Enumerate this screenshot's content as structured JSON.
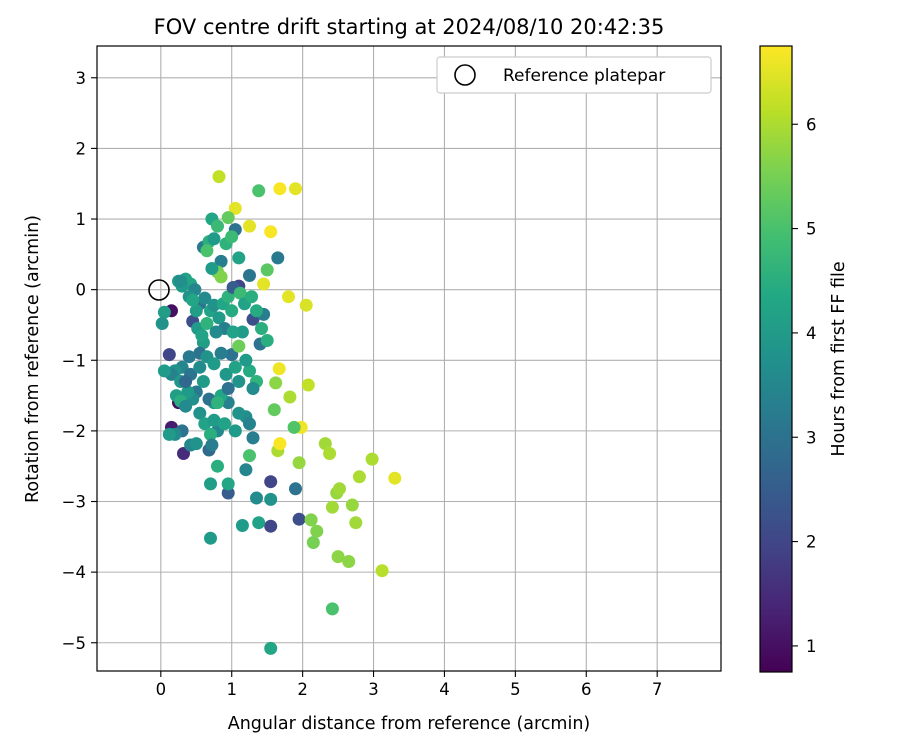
{
  "chart_data": {
    "type": "scatter",
    "title": "FOV centre drift starting at 2024/08/10 20:42:35",
    "xlabel": "Angular distance from reference (arcmin)",
    "ylabel": "Rotation from reference (arcmin)",
    "xlim": [
      -0.9,
      7.9
    ],
    "ylim": [
      -5.4,
      3.45
    ],
    "xticks": [
      0,
      1,
      2,
      3,
      4,
      5,
      6,
      7
    ],
    "yticks": [
      -5,
      -4,
      -3,
      -2,
      -1,
      0,
      1,
      2,
      3
    ],
    "grid": true,
    "legend": {
      "position": "top-right",
      "entries": [
        "Reference platepar"
      ]
    },
    "reference_point": {
      "x": 0,
      "y": 0
    },
    "colormap": "viridis",
    "colorbar": {
      "label": "Hours from first FF file",
      "min": 0.75,
      "max": 6.75,
      "ticks": [
        1,
        2,
        3,
        4,
        5,
        6
      ]
    },
    "points": [
      {
        "x": 0.15,
        "y": -0.3,
        "h": 1.0
      },
      {
        "x": 0.15,
        "y": -1.95,
        "h": 1.2
      },
      {
        "x": 0.25,
        "y": -1.6,
        "h": 1.0
      },
      {
        "x": 0.32,
        "y": -2.32,
        "h": 1.5
      },
      {
        "x": 0.12,
        "y": -0.92,
        "h": 2.0
      },
      {
        "x": 0.3,
        "y": -2.0,
        "h": 3.0
      },
      {
        "x": 0.2,
        "y": -1.15,
        "h": 2.5
      },
      {
        "x": 0.45,
        "y": -0.45,
        "h": 2.2
      },
      {
        "x": 0.55,
        "y": -0.2,
        "h": 3.0
      },
      {
        "x": 0.6,
        "y": 0.6,
        "h": 3.2
      },
      {
        "x": 0.68,
        "y": -2.27,
        "h": 2.8
      },
      {
        "x": 0.8,
        "y": -2.0,
        "h": 3.5
      },
      {
        "x": 0.95,
        "y": -2.88,
        "h": 2.5
      },
      {
        "x": 1.0,
        "y": -0.92,
        "h": 3.0
      },
      {
        "x": 1.05,
        "y": 0.85,
        "h": 3.0
      },
      {
        "x": 1.1,
        "y": 0.05,
        "h": 2.0
      },
      {
        "x": 1.25,
        "y": 0.2,
        "h": 3.1
      },
      {
        "x": 1.3,
        "y": -0.42,
        "h": 2.2
      },
      {
        "x": 1.4,
        "y": -0.77,
        "h": 3.0
      },
      {
        "x": 1.45,
        "y": -0.35,
        "h": 3.3
      },
      {
        "x": 1.65,
        "y": 0.45,
        "h": 3.2
      },
      {
        "x": 1.55,
        "y": -2.72,
        "h": 2.0
      },
      {
        "x": 1.55,
        "y": -3.35,
        "h": 2.0
      },
      {
        "x": 1.95,
        "y": -3.25,
        "h": 2.2
      },
      {
        "x": 1.9,
        "y": -2.82,
        "h": 3.0
      },
      {
        "x": 1.3,
        "y": -2.1,
        "h": 3.3
      },
      {
        "x": 1.2,
        "y": -2.55,
        "h": 3.5
      },
      {
        "x": 1.35,
        "y": -2.95,
        "h": 3.6
      },
      {
        "x": 1.55,
        "y": -2.97,
        "h": 3.8
      },
      {
        "x": 0.7,
        "y": -3.52,
        "h": 4.0
      },
      {
        "x": 1.15,
        "y": -3.34,
        "h": 4.0
      },
      {
        "x": 1.38,
        "y": -3.3,
        "h": 4.2
      },
      {
        "x": 0.7,
        "y": -2.75,
        "h": 4.1
      },
      {
        "x": 0.8,
        "y": -2.5,
        "h": 4.5
      },
      {
        "x": 0.95,
        "y": -2.75,
        "h": 4.3
      },
      {
        "x": 1.25,
        "y": -2.35,
        "h": 5.0
      },
      {
        "x": 1.55,
        "y": -5.08,
        "h": 4.3
      },
      {
        "x": 2.42,
        "y": -4.52,
        "h": 5.0
      },
      {
        "x": 2.15,
        "y": -3.58,
        "h": 5.5
      },
      {
        "x": 2.12,
        "y": -3.26,
        "h": 5.6
      },
      {
        "x": 2.2,
        "y": -3.42,
        "h": 5.6
      },
      {
        "x": 2.5,
        "y": -3.78,
        "h": 5.7
      },
      {
        "x": 2.65,
        "y": -3.85,
        "h": 5.7
      },
      {
        "x": 3.12,
        "y": -3.98,
        "h": 6.1
      },
      {
        "x": 2.75,
        "y": -3.3,
        "h": 5.9
      },
      {
        "x": 2.7,
        "y": -3.05,
        "h": 5.8
      },
      {
        "x": 2.42,
        "y": -3.08,
        "h": 5.9
      },
      {
        "x": 2.48,
        "y": -2.88,
        "h": 5.8
      },
      {
        "x": 2.52,
        "y": -2.82,
        "h": 5.9
      },
      {
        "x": 2.8,
        "y": -2.65,
        "h": 6.0
      },
      {
        "x": 3.3,
        "y": -2.67,
        "h": 6.5
      },
      {
        "x": 2.98,
        "y": -2.4,
        "h": 6.0
      },
      {
        "x": 2.32,
        "y": -2.18,
        "h": 5.9
      },
      {
        "x": 2.38,
        "y": -2.32,
        "h": 6.0
      },
      {
        "x": 1.95,
        "y": -2.45,
        "h": 5.8
      },
      {
        "x": 1.65,
        "y": -2.28,
        "h": 6.0
      },
      {
        "x": 1.68,
        "y": -2.18,
        "h": 6.7
      },
      {
        "x": 1.98,
        "y": -1.95,
        "h": 6.6
      },
      {
        "x": 1.88,
        "y": -1.95,
        "h": 5.1
      },
      {
        "x": 1.6,
        "y": -1.7,
        "h": 5.3
      },
      {
        "x": 1.82,
        "y": -1.52,
        "h": 6.0
      },
      {
        "x": 1.62,
        "y": -1.32,
        "h": 5.7
      },
      {
        "x": 2.08,
        "y": -1.35,
        "h": 6.2
      },
      {
        "x": 1.67,
        "y": -1.12,
        "h": 6.6
      },
      {
        "x": 1.35,
        "y": -1.3,
        "h": 4.6
      },
      {
        "x": 1.1,
        "y": -0.8,
        "h": 5.4
      },
      {
        "x": 1.5,
        "y": -0.72,
        "h": 4.5
      },
      {
        "x": 1.8,
        "y": -0.1,
        "h": 6.5
      },
      {
        "x": 2.05,
        "y": -0.22,
        "h": 6.4
      },
      {
        "x": 1.45,
        "y": 0.08,
        "h": 6.5
      },
      {
        "x": 1.5,
        "y": 0.28,
        "h": 5.2
      },
      {
        "x": 1.55,
        "y": 0.82,
        "h": 6.7
      },
      {
        "x": 1.25,
        "y": 0.9,
        "h": 6.5
      },
      {
        "x": 1.05,
        "y": 1.15,
        "h": 6.5
      },
      {
        "x": 1.38,
        "y": 1.4,
        "h": 5.0
      },
      {
        "x": 1.68,
        "y": 1.43,
        "h": 6.7
      },
      {
        "x": 1.9,
        "y": 1.43,
        "h": 6.5
      },
      {
        "x": 0.82,
        "y": 1.6,
        "h": 6.2
      },
      {
        "x": 0.95,
        "y": 1.02,
        "h": 5.3
      },
      {
        "x": 0.72,
        "y": 1.0,
        "h": 4.3
      },
      {
        "x": 0.8,
        "y": 0.9,
        "h": 4.8
      },
      {
        "x": 0.68,
        "y": 0.68,
        "h": 4.5
      },
      {
        "x": 0.75,
        "y": 0.72,
        "h": 4.0
      },
      {
        "x": 0.65,
        "y": 0.55,
        "h": 5.0
      },
      {
        "x": 0.92,
        "y": 0.65,
        "h": 4.6
      },
      {
        "x": 1.0,
        "y": 0.75,
        "h": 4.8
      },
      {
        "x": 0.85,
        "y": 0.4,
        "h": 3.3
      },
      {
        "x": 0.8,
        "y": 0.25,
        "h": 5.5
      },
      {
        "x": 0.85,
        "y": 0.18,
        "h": 5.6
      },
      {
        "x": 0.72,
        "y": 0.3,
        "h": 4.0
      },
      {
        "x": 1.1,
        "y": 0.45,
        "h": 4.2
      },
      {
        "x": 0.25,
        "y": 0.12,
        "h": 4.0
      },
      {
        "x": 0.35,
        "y": 0.15,
        "h": 4.2
      },
      {
        "x": 0.42,
        "y": 0.08,
        "h": 4.3
      },
      {
        "x": 0.48,
        "y": 0.0,
        "h": 3.5
      },
      {
        "x": 0.3,
        "y": 0.05,
        "h": 4.0
      },
      {
        "x": 0.4,
        "y": -0.1,
        "h": 3.8
      },
      {
        "x": 0.5,
        "y": -0.3,
        "h": 4.1
      },
      {
        "x": 0.52,
        "y": -0.55,
        "h": 4.0
      },
      {
        "x": 0.62,
        "y": -0.12,
        "h": 3.6
      },
      {
        "x": 0.7,
        "y": -0.3,
        "h": 4.2
      },
      {
        "x": 0.65,
        "y": -0.48,
        "h": 4.6
      },
      {
        "x": 0.75,
        "y": -0.22,
        "h": 3.8
      },
      {
        "x": 0.82,
        "y": -0.4,
        "h": 4.0
      },
      {
        "x": 0.88,
        "y": -0.2,
        "h": 4.3
      },
      {
        "x": 0.9,
        "y": -0.55,
        "h": 3.3
      },
      {
        "x": 0.95,
        "y": -0.1,
        "h": 4.6
      },
      {
        "x": 1.0,
        "y": -0.3,
        "h": 4.4
      },
      {
        "x": 1.02,
        "y": 0.03,
        "h": 2.5
      },
      {
        "x": 1.12,
        "y": -0.05,
        "h": 4.8
      },
      {
        "x": 1.18,
        "y": -0.2,
        "h": 4.2
      },
      {
        "x": 1.28,
        "y": -0.1,
        "h": 4.5
      },
      {
        "x": 1.35,
        "y": -0.3,
        "h": 4.4
      },
      {
        "x": 1.42,
        "y": -0.55,
        "h": 4.5
      },
      {
        "x": 1.15,
        "y": -0.6,
        "h": 4.0
      },
      {
        "x": 1.02,
        "y": -0.6,
        "h": 4.2
      },
      {
        "x": 0.78,
        "y": -0.6,
        "h": 3.6
      },
      {
        "x": 0.6,
        "y": -0.75,
        "h": 4.1
      },
      {
        "x": 0.55,
        "y": -0.9,
        "h": 3.0
      },
      {
        "x": 0.4,
        "y": -0.95,
        "h": 3.2
      },
      {
        "x": 0.3,
        "y": -1.1,
        "h": 3.5
      },
      {
        "x": 0.2,
        "y": -1.15,
        "h": 3.8
      },
      {
        "x": 0.15,
        "y": -1.2,
        "h": 3.4
      },
      {
        "x": 0.28,
        "y": -1.3,
        "h": 3.9
      },
      {
        "x": 0.42,
        "y": -1.2,
        "h": 3.1
      },
      {
        "x": 0.55,
        "y": -1.1,
        "h": 3.6
      },
      {
        "x": 0.65,
        "y": -0.95,
        "h": 3.8
      },
      {
        "x": 0.75,
        "y": -1.05,
        "h": 4.0
      },
      {
        "x": 0.85,
        "y": -0.9,
        "h": 3.3
      },
      {
        "x": 0.92,
        "y": -1.2,
        "h": 3.9
      },
      {
        "x": 1.05,
        "y": -1.1,
        "h": 4.2
      },
      {
        "x": 1.1,
        "y": -1.3,
        "h": 3.8
      },
      {
        "x": 1.25,
        "y": -1.15,
        "h": 4.4
      },
      {
        "x": 1.3,
        "y": -1.4,
        "h": 3.6
      },
      {
        "x": 1.2,
        "y": -1.8,
        "h": 3.7
      },
      {
        "x": 1.25,
        "y": -1.9,
        "h": 3.4
      },
      {
        "x": 1.1,
        "y": -1.75,
        "h": 3.8
      },
      {
        "x": 0.95,
        "y": -1.6,
        "h": 3.4
      },
      {
        "x": 0.85,
        "y": -1.5,
        "h": 4.3
      },
      {
        "x": 0.75,
        "y": -1.6,
        "h": 3.9
      },
      {
        "x": 0.68,
        "y": -1.55,
        "h": 3.0
      },
      {
        "x": 0.6,
        "y": -1.3,
        "h": 4.0
      },
      {
        "x": 0.5,
        "y": -1.45,
        "h": 3.2
      },
      {
        "x": 0.45,
        "y": -1.55,
        "h": 3.7
      },
      {
        "x": 0.38,
        "y": -1.45,
        "h": 4.0
      },
      {
        "x": 0.35,
        "y": -1.3,
        "h": 2.8
      },
      {
        "x": 0.22,
        "y": -1.5,
        "h": 4.1
      },
      {
        "x": 0.28,
        "y": -1.58,
        "h": 4.5
      },
      {
        "x": 0.35,
        "y": -1.65,
        "h": 3.6
      },
      {
        "x": 0.55,
        "y": -1.75,
        "h": 3.8
      },
      {
        "x": 0.62,
        "y": -1.9,
        "h": 4.2
      },
      {
        "x": 0.7,
        "y": -2.05,
        "h": 4.5
      },
      {
        "x": 0.75,
        "y": -1.85,
        "h": 4.0
      },
      {
        "x": 0.8,
        "y": -1.6,
        "h": 4.6
      },
      {
        "x": 0.9,
        "y": -1.9,
        "h": 4.2
      },
      {
        "x": 1.05,
        "y": -2.0,
        "h": 4.0
      },
      {
        "x": 0.42,
        "y": -2.2,
        "h": 3.5
      },
      {
        "x": 0.5,
        "y": -2.18,
        "h": 3.8
      },
      {
        "x": 0.72,
        "y": -2.2,
        "h": 3.3
      },
      {
        "x": 0.2,
        "y": -2.05,
        "h": 3.6
      },
      {
        "x": 0.12,
        "y": -2.05,
        "h": 4.0
      },
      {
        "x": 0.05,
        "y": -1.15,
        "h": 4.0
      },
      {
        "x": 0.05,
        "y": -0.32,
        "h": 4.1
      },
      {
        "x": 0.02,
        "y": -0.48,
        "h": 3.8
      },
      {
        "x": 0.28,
        "y": 0.12,
        "h": 3.7
      },
      {
        "x": 0.45,
        "y": -0.15,
        "h": 4.3
      },
      {
        "x": 0.58,
        "y": -0.65,
        "h": 4.2
      },
      {
        "x": 0.95,
        "y": -1.4,
        "h": 3.0
      },
      {
        "x": 1.2,
        "y": -1.0,
        "h": 4.0
      }
    ]
  }
}
